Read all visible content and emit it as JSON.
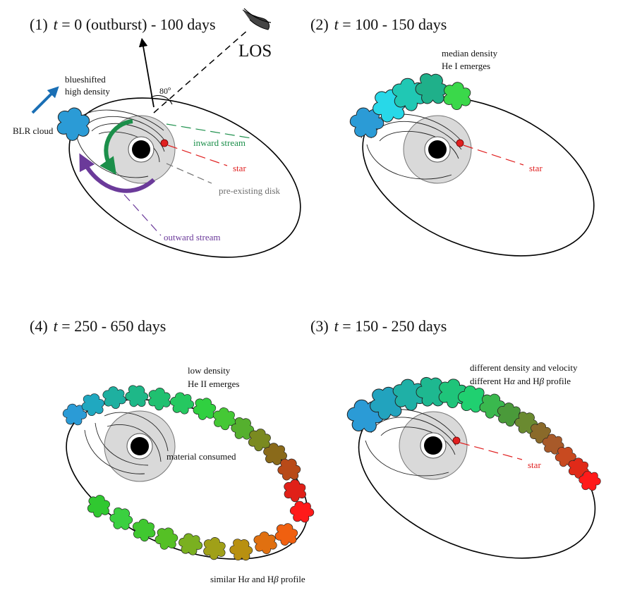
{
  "colors": {
    "black": "#000000",
    "green": "#1b8f4a",
    "red": "#e02020",
    "gray_label": "#707070",
    "purple": "#6b3a9a",
    "blue_arrow": "#1a6fb5",
    "disk_fill": "#d9d9d9",
    "cloud_blue": "#2b9bd6"
  },
  "panel1": {
    "title_num": "(1)",
    "title_t": "t",
    "title_rest": " = 0 (outburst) - 100 days",
    "los": "LOS",
    "angle": "80",
    "angle_sup": "o",
    "blue_label_1": "blueshifted",
    "blue_label_2": "high density",
    "blr": "BLR cloud",
    "inward": "inward stream",
    "star": "star",
    "disk": "pre-existing disk",
    "outward": "outward stream"
  },
  "panel2": {
    "title_num": "(2)",
    "title_t": "t",
    "title_rest": " = 100 - 150 days",
    "label_1": "median density",
    "label_2": "He I emerges",
    "star": "star"
  },
  "panel4": {
    "title_num": "(4)",
    "title_t": "t",
    "title_rest": " = 250 - 650 days",
    "label_1": "low density",
    "label_2": "He II emerges",
    "consumed": "material consumed",
    "bottom_a": "similar H",
    "bottom_alpha": "α",
    "bottom_b": " and H",
    "bottom_beta": "β",
    "bottom_c": " profile"
  },
  "panel3": {
    "title_num": "(3)",
    "title_t": "t",
    "title_rest": " = 150 - 250 days",
    "label_1": "different density and velocity",
    "label_2a": "different H",
    "label_2alpha": "α",
    "label_2b": " and H",
    "label_2beta": "β",
    "label_2c": " profile",
    "star": "star"
  },
  "cloud_colors": {
    "panel2": [
      "#2b9bd6",
      "#28d8e8",
      "#20c8b4",
      "#1fb08a",
      "#3ad84a"
    ],
    "panel3": [
      "#2b9bd6",
      "#22a3be",
      "#1fb0a6",
      "#1eb890",
      "#1fc47a",
      "#20d070",
      "#3ab84e",
      "#4a9a3a",
      "#6a8a30",
      "#8a6a2a",
      "#a85a2a",
      "#c84a20",
      "#e02a18",
      "#ff1a1a"
    ],
    "panel4": [
      "#2b9bd6",
      "#20a8c0",
      "#1eb0a0",
      "#1eb888",
      "#20c070",
      "#25c860",
      "#30d040",
      "#45c835",
      "#55b02e",
      "#7a8a20",
      "#8a6a1a",
      "#b84a18",
      "#e02018",
      "#ff1a1a",
      "#f06010",
      "#e07010",
      "#b89010",
      "#a0a018",
      "#7ab020",
      "#55c025",
      "#40c830",
      "#3ad040",
      "#30c830"
    ]
  }
}
